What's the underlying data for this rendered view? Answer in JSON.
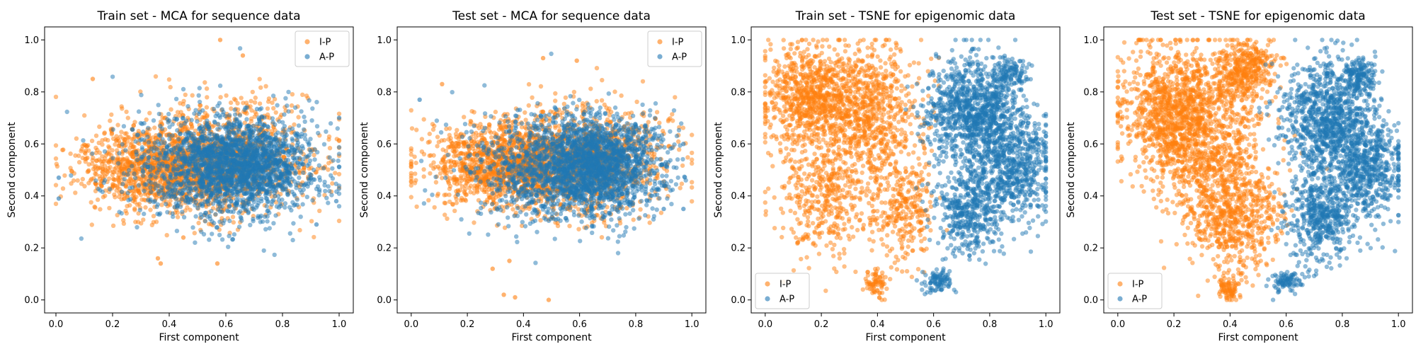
{
  "chart_data": [
    {
      "type": "scatter",
      "title": "Train set - MCA for sequence data",
      "xlabel": "First component",
      "ylabel": "Second component",
      "xlim": [
        -0.04,
        1.05
      ],
      "ylim": [
        -0.05,
        1.05
      ],
      "xticks": [
        "0.0",
        "0.2",
        "0.4",
        "0.6",
        "0.8",
        "1.0"
      ],
      "yticks": [
        "0.0",
        "0.2",
        "0.4",
        "0.6",
        "0.8",
        "1.0"
      ],
      "legend_position": "top-right",
      "grid": false,
      "series": [
        {
          "name": "I-P",
          "color": "#ff7f0e",
          "seed": 11,
          "count": 2200,
          "clusters": [
            {
              "w": 0.55,
              "cx": 0.36,
              "cy": 0.51,
              "sx": 0.14,
              "sy": 0.08
            },
            {
              "w": 0.45,
              "cx": 0.62,
              "cy": 0.54,
              "sx": 0.15,
              "sy": 0.11
            }
          ],
          "extra_points": [
            [
              0.58,
              1.0
            ],
            [
              0.66,
              0.94
            ],
            [
              0.13,
              0.85
            ],
            [
              0.37,
              0.14
            ],
            [
              0.36,
              0.16
            ],
            [
              0.45,
              0.24
            ],
            [
              0.57,
              0.14
            ]
          ]
        },
        {
          "name": "A-P",
          "color": "#1f77b4",
          "seed": 29,
          "count": 2300,
          "clusters": [
            {
              "w": 0.7,
              "cx": 0.66,
              "cy": 0.52,
              "sx": 0.12,
              "sy": 0.09
            },
            {
              "w": 0.3,
              "cx": 0.52,
              "cy": 0.5,
              "sx": 0.16,
              "sy": 0.11
            }
          ],
          "extra_points": [
            [
              0.01,
              0.47
            ],
            [
              0.01,
              0.39
            ],
            [
              0.92,
              0.29
            ],
            [
              1.0,
              0.7
            ],
            [
              0.99,
              0.38
            ]
          ]
        }
      ]
    },
    {
      "type": "scatter",
      "title": "Test set - MCA for sequence data",
      "xlabel": "First component",
      "ylabel": "Second component",
      "xlim": [
        -0.05,
        1.05
      ],
      "ylim": [
        -0.05,
        1.05
      ],
      "xticks": [
        "0.0",
        "0.2",
        "0.4",
        "0.6",
        "0.8",
        "1.0"
      ],
      "yticks": [
        "0.0",
        "0.2",
        "0.4",
        "0.6",
        "0.8",
        "1.0"
      ],
      "legend_position": "top-right",
      "grid": false,
      "series": [
        {
          "name": "I-P",
          "color": "#ff7f0e",
          "seed": 41,
          "count": 2400,
          "clusters": [
            {
              "w": 0.55,
              "cx": 0.34,
              "cy": 0.52,
              "sx": 0.14,
              "sy": 0.08
            },
            {
              "w": 0.45,
              "cx": 0.62,
              "cy": 0.54,
              "sx": 0.15,
              "sy": 0.11
            }
          ],
          "extra_points": [
            [
              0.33,
              0.02
            ],
            [
              0.49,
              0.0
            ],
            [
              0.37,
              0.01
            ],
            [
              0.29,
              0.12
            ],
            [
              0.11,
              0.83
            ],
            [
              0.47,
              0.93
            ],
            [
              0.59,
              0.92
            ],
            [
              0.35,
              0.15
            ]
          ]
        },
        {
          "name": "A-P",
          "color": "#1f77b4",
          "seed": 53,
          "count": 2500,
          "clusters": [
            {
              "w": 0.7,
              "cx": 0.65,
              "cy": 0.52,
              "sx": 0.12,
              "sy": 0.09
            },
            {
              "w": 0.3,
              "cx": 0.5,
              "cy": 0.5,
              "sx": 0.16,
              "sy": 0.11
            }
          ],
          "extra_points": [
            [
              0.03,
              0.77
            ],
            [
              0.97,
              0.6
            ],
            [
              0.97,
              0.35
            ],
            [
              0.9,
              0.35
            ]
          ]
        }
      ]
    },
    {
      "type": "scatter",
      "title": "Train set - TSNE for epigenomic data",
      "xlabel": "First component",
      "ylabel": "Second component",
      "xlim": [
        -0.05,
        1.05
      ],
      "ylim": [
        -0.05,
        1.05
      ],
      "xticks": [
        "0.0",
        "0.2",
        "0.4",
        "0.6",
        "0.8",
        "1.0"
      ],
      "yticks": [
        "0.0",
        "0.2",
        "0.4",
        "0.6",
        "0.8",
        "1.0"
      ],
      "legend_position": "bottom-left",
      "grid": false,
      "series": [
        {
          "name": "I-P",
          "color": "#ff7f0e",
          "seed": 67,
          "count": 2300,
          "clusters": [
            {
              "w": 0.35,
              "cx": 0.16,
              "cy": 0.78,
              "sx": 0.09,
              "sy": 0.1
            },
            {
              "w": 0.3,
              "cx": 0.38,
              "cy": 0.72,
              "sx": 0.09,
              "sy": 0.13
            },
            {
              "w": 0.2,
              "cx": 0.22,
              "cy": 0.4,
              "sx": 0.09,
              "sy": 0.12
            },
            {
              "w": 0.12,
              "cx": 0.49,
              "cy": 0.35,
              "sx": 0.05,
              "sy": 0.1
            },
            {
              "w": 0.03,
              "cx": 0.4,
              "cy": 0.06,
              "sx": 0.02,
              "sy": 0.03
            }
          ],
          "extra_points": []
        },
        {
          "name": "A-P",
          "color": "#1f77b4",
          "seed": 79,
          "count": 2300,
          "clusters": [
            {
              "w": 0.4,
              "cx": 0.74,
              "cy": 0.72,
              "sx": 0.08,
              "sy": 0.1
            },
            {
              "w": 0.3,
              "cx": 0.88,
              "cy": 0.52,
              "sx": 0.07,
              "sy": 0.11
            },
            {
              "w": 0.2,
              "cx": 0.73,
              "cy": 0.35,
              "sx": 0.06,
              "sy": 0.09
            },
            {
              "w": 0.06,
              "cx": 0.87,
              "cy": 0.87,
              "sx": 0.03,
              "sy": 0.03
            },
            {
              "w": 0.04,
              "cx": 0.62,
              "cy": 0.07,
              "sx": 0.03,
              "sy": 0.02
            }
          ],
          "extra_points": []
        }
      ]
    },
    {
      "type": "scatter",
      "title": "Test set - TSNE for epigenomic data",
      "xlabel": "First component",
      "ylabel": "Second component",
      "xlim": [
        -0.05,
        1.05
      ],
      "ylim": [
        -0.05,
        1.05
      ],
      "xticks": [
        "0.0",
        "0.2",
        "0.4",
        "0.6",
        "0.8",
        "1.0"
      ],
      "yticks": [
        "0.0",
        "0.2",
        "0.4",
        "0.6",
        "0.8",
        "1.0"
      ],
      "legend_position": "bottom-left",
      "grid": false,
      "series": [
        {
          "name": "I-P",
          "color": "#ff7f0e",
          "seed": 97,
          "count": 2800,
          "clusters": [
            {
              "w": 0.4,
              "cx": 0.2,
              "cy": 0.72,
              "sx": 0.09,
              "sy": 0.13
            },
            {
              "w": 0.25,
              "cx": 0.35,
              "cy": 0.55,
              "sx": 0.1,
              "sy": 0.15
            },
            {
              "w": 0.15,
              "cx": 0.45,
              "cy": 0.88,
              "sx": 0.06,
              "sy": 0.06
            },
            {
              "w": 0.17,
              "cx": 0.42,
              "cy": 0.3,
              "sx": 0.08,
              "sy": 0.1
            },
            {
              "w": 0.03,
              "cx": 0.4,
              "cy": 0.05,
              "sx": 0.02,
              "sy": 0.03
            }
          ],
          "extra_points": []
        },
        {
          "name": "A-P",
          "color": "#1f77b4",
          "seed": 109,
          "count": 2300,
          "clusters": [
            {
              "w": 0.4,
              "cx": 0.74,
              "cy": 0.7,
              "sx": 0.08,
              "sy": 0.11
            },
            {
              "w": 0.3,
              "cx": 0.88,
              "cy": 0.52,
              "sx": 0.07,
              "sy": 0.11
            },
            {
              "w": 0.2,
              "cx": 0.72,
              "cy": 0.32,
              "sx": 0.06,
              "sy": 0.09
            },
            {
              "w": 0.06,
              "cx": 0.86,
              "cy": 0.86,
              "sx": 0.03,
              "sy": 0.03
            },
            {
              "w": 0.04,
              "cx": 0.6,
              "cy": 0.07,
              "sx": 0.03,
              "sy": 0.02
            }
          ],
          "extra_points": []
        }
      ]
    }
  ]
}
